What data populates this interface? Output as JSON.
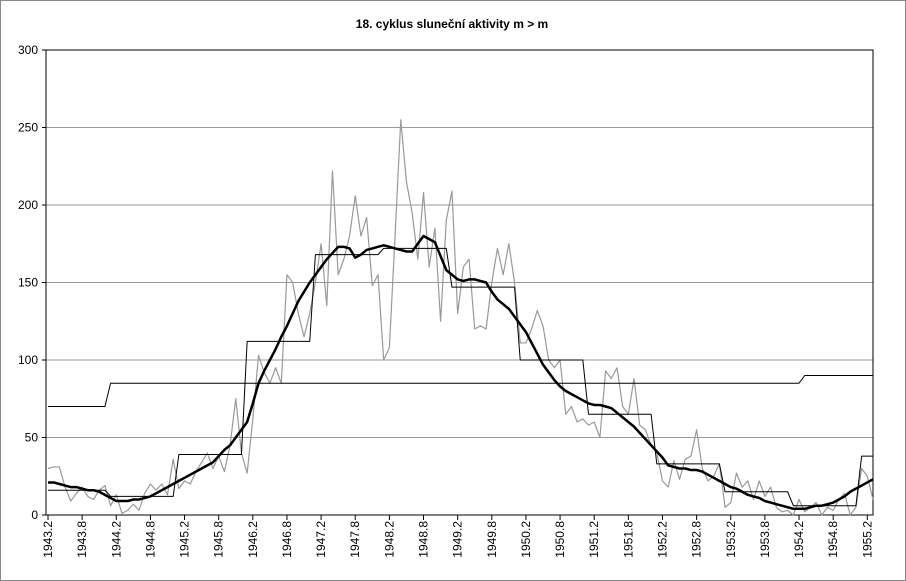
{
  "chart_data": {
    "type": "line",
    "title": "18. cyklus sluneční aktivity m > m",
    "categories": [
      "1943.2",
      null,
      null,
      null,
      null,
      null,
      "1943.8",
      null,
      null,
      null,
      null,
      null,
      "1944.2",
      null,
      null,
      null,
      null,
      null,
      "1944.8",
      null,
      null,
      null,
      null,
      null,
      "1945.2",
      null,
      null,
      null,
      null,
      null,
      "1945.8",
      null,
      null,
      null,
      null,
      null,
      "1946.2",
      null,
      null,
      null,
      null,
      null,
      "1946.8",
      null,
      null,
      null,
      null,
      null,
      "1947.2",
      null,
      null,
      null,
      null,
      null,
      "1947.8",
      null,
      null,
      null,
      null,
      null,
      "1948.2",
      null,
      null,
      null,
      null,
      null,
      "1948.8",
      null,
      null,
      null,
      null,
      null,
      "1949.2",
      null,
      null,
      null,
      null,
      null,
      "1949.8",
      null,
      null,
      null,
      null,
      null,
      "1950.2",
      null,
      null,
      null,
      null,
      null,
      "1950.8",
      null,
      null,
      null,
      null,
      null,
      "1951.2",
      null,
      null,
      null,
      null,
      null,
      "1951.8",
      null,
      null,
      null,
      null,
      null,
      "1952.2",
      null,
      null,
      null,
      null,
      null,
      "1952.8",
      null,
      null,
      null,
      null,
      null,
      "1953.2",
      null,
      null,
      null,
      null,
      null,
      "1953.8",
      null,
      null,
      null,
      null,
      null,
      "1954.2",
      null,
      null,
      null,
      null,
      null,
      "1954.8",
      null,
      null,
      null,
      null,
      null,
      "1955.2",
      null
    ],
    "ylim": [
      0,
      300
    ],
    "yticks": [
      0,
      50,
      100,
      150,
      200,
      250,
      300
    ],
    "grid": true,
    "series": [
      {
        "color": "#999999",
        "width": 1.2,
        "values": [
          30,
          31,
          31,
          18,
          9,
          14,
          18,
          12,
          10,
          16,
          19,
          6,
          13,
          1,
          3,
          7,
          3,
          14,
          20,
          16,
          20,
          13,
          36,
          17,
          22,
          20,
          28,
          34,
          40,
          30,
          38,
          28,
          45,
          75,
          40,
          27,
          62,
          103,
          92,
          85,
          95,
          85,
          155,
          150,
          130,
          115,
          130,
          150,
          175,
          135,
          222,
          155,
          165,
          180,
          206,
          180,
          192,
          148,
          155,
          100,
          108,
          180,
          255,
          215,
          195,
          165,
          208,
          160,
          185,
          125,
          190,
          209,
          130,
          160,
          165,
          120,
          122,
          120,
          150,
          172,
          155,
          175,
          150,
          111,
          111,
          120,
          132,
          122,
          100,
          95,
          100,
          65,
          70,
          60,
          62,
          58,
          60,
          50,
          93,
          88,
          95,
          70,
          65,
          88,
          58,
          55,
          45,
          40,
          22,
          18,
          35,
          23,
          36,
          38,
          55,
          30,
          22,
          25,
          33,
          5,
          8,
          27,
          18,
          22,
          10,
          22,
          12,
          18,
          5,
          2,
          3,
          0,
          10,
          2,
          5,
          8,
          0,
          5,
          3,
          10,
          14,
          0,
          5,
          30,
          25,
          10
        ]
      },
      {
        "color": "#000000",
        "width": 1,
        "values": [
          70,
          70,
          70,
          70,
          70,
          70,
          70,
          70,
          70,
          70,
          70,
          85,
          85,
          85,
          85,
          85,
          85,
          85,
          85,
          85,
          85,
          85,
          85,
          85,
          85,
          85,
          85,
          85,
          85,
          85,
          85,
          85,
          85,
          85,
          85,
          85,
          85,
          85,
          85,
          85,
          85,
          85,
          85,
          85,
          85,
          85,
          85,
          85,
          85,
          85,
          85,
          85,
          85,
          85,
          85,
          85,
          85,
          85,
          85,
          85,
          85,
          85,
          85,
          85,
          85,
          85,
          85,
          85,
          85,
          85,
          85,
          85,
          85,
          85,
          85,
          85,
          85,
          85,
          85,
          85,
          85,
          85,
          85,
          85,
          85,
          85,
          85,
          85,
          85,
          85,
          85,
          85,
          85,
          85,
          85,
          85,
          85,
          85,
          85,
          85,
          85,
          85,
          85,
          85,
          85,
          85,
          85,
          85,
          85,
          85,
          85,
          85,
          85,
          85,
          85,
          85,
          85,
          85,
          85,
          85,
          85,
          85,
          85,
          85,
          85,
          85,
          85,
          85,
          85,
          85,
          85,
          85,
          85,
          90,
          90,
          90,
          90,
          90,
          90,
          90,
          90,
          90,
          90,
          90,
          90,
          90
        ]
      },
      {
        "color": "#000000",
        "width": 1,
        "values": [
          16,
          16,
          16,
          16,
          16,
          16,
          16,
          16,
          16,
          16,
          16,
          12,
          12,
          12,
          12,
          12,
          12,
          12,
          12,
          12,
          12,
          12,
          12,
          39,
          39,
          39,
          39,
          39,
          39,
          39,
          39,
          39,
          39,
          39,
          39,
          112,
          112,
          112,
          112,
          112,
          112,
          112,
          112,
          112,
          112,
          112,
          112,
          168,
          168,
          168,
          168,
          168,
          168,
          168,
          168,
          168,
          168,
          168,
          168,
          172,
          172,
          172,
          172,
          172,
          172,
          172,
          172,
          172,
          172,
          172,
          172,
          147,
          147,
          147,
          147,
          147,
          147,
          147,
          147,
          147,
          147,
          147,
          147,
          100,
          100,
          100,
          100,
          100,
          100,
          100,
          100,
          100,
          100,
          100,
          100,
          65,
          65,
          65,
          65,
          65,
          65,
          65,
          65,
          65,
          65,
          65,
          65,
          33,
          33,
          33,
          33,
          33,
          33,
          33,
          33,
          33,
          33,
          33,
          33,
          15,
          15,
          15,
          15,
          15,
          15,
          15,
          15,
          15,
          15,
          15,
          15,
          6,
          6,
          6,
          6,
          6,
          6,
          6,
          6,
          6,
          6,
          6,
          6,
          38,
          38,
          38
        ]
      },
      {
        "color": "#000000",
        "width": 2.5,
        "values": [
          21,
          21,
          20,
          19,
          18,
          18,
          17,
          16,
          16,
          15,
          13,
          11,
          9,
          9,
          9,
          10,
          10,
          11,
          12,
          14,
          16,
          18,
          20,
          22,
          24,
          26,
          28,
          30,
          32,
          34,
          38,
          42,
          45,
          50,
          55,
          60,
          72,
          85,
          93,
          100,
          107,
          115,
          122,
          130,
          138,
          144,
          150,
          155,
          160,
          165,
          169,
          173,
          173,
          172,
          166,
          168,
          171,
          172,
          173,
          174,
          173,
          172,
          171,
          170,
          170,
          175,
          180,
          178,
          176,
          167,
          158,
          155,
          152,
          151,
          152,
          152,
          151,
          150,
          144,
          139,
          136,
          133,
          128,
          123,
          118,
          111,
          104,
          97,
          92,
          87,
          83,
          80,
          78,
          76,
          74,
          72,
          71,
          71,
          70,
          69,
          66,
          63,
          60,
          57,
          53,
          49,
          45,
          41,
          37,
          32,
          31,
          30,
          30,
          29,
          29,
          28,
          26,
          24,
          22,
          20,
          18,
          17,
          15,
          13,
          12,
          11,
          9,
          8,
          7,
          6,
          5,
          4,
          4,
          4,
          5,
          6,
          6,
          7,
          8,
          10,
          12,
          15,
          17,
          19,
          21,
          23
        ]
      }
    ]
  }
}
